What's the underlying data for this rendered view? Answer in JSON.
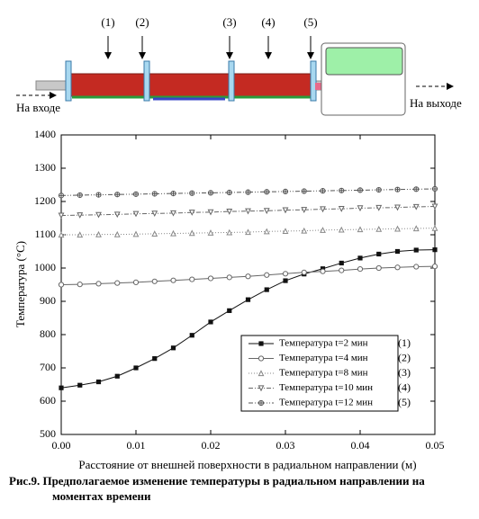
{
  "diagram": {
    "stage_labels": [
      "(1)",
      "(2)",
      "(3)",
      "(4)",
      "(5)"
    ],
    "inlet": "На входе",
    "outlet": "На выходе"
  },
  "chart_data": {
    "type": "line",
    "x_label": "Расстояние от внешней поверхности в радиальном направлении (м)",
    "y_label": "Температура (°C)",
    "x": [
      0,
      0.0025,
      0.005,
      0.0075,
      0.01,
      0.0125,
      0.015,
      0.0175,
      0.02,
      0.0225,
      0.025,
      0.0275,
      0.03,
      0.0325,
      0.035,
      0.0375,
      0.04,
      0.0425,
      0.045,
      0.0475,
      0.05
    ],
    "series": [
      {
        "name": "Температура t=2 мин",
        "color": "#111111",
        "marker": "square-filled",
        "dash": "",
        "values": [
          640,
          648,
          658,
          675,
          700,
          728,
          760,
          798,
          838,
          872,
          905,
          935,
          962,
          982,
          998,
          1015,
          1030,
          1042,
          1050,
          1054,
          1055
        ]
      },
      {
        "name": "Температура t=4 мин",
        "color": "#666666",
        "marker": "circle-open",
        "dash": "",
        "values": [
          950,
          951,
          953,
          955,
          957,
          960,
          963,
          966,
          969,
          972,
          975,
          979,
          983,
          987,
          990,
          993,
          997,
          1000,
          1002,
          1004,
          1005
        ]
      },
      {
        "name": "Температура t=8 мин",
        "color": "#888888",
        "marker": "triangle-up",
        "dash": "1 2",
        "values": [
          1100,
          1100,
          1101,
          1101,
          1102,
          1103,
          1104,
          1105,
          1106,
          1107,
          1108,
          1110,
          1111,
          1112,
          1114,
          1115,
          1116,
          1117,
          1118,
          1119,
          1120
        ]
      },
      {
        "name": "Температура t=10 мин",
        "color": "#666666",
        "marker": "triangle-down",
        "dash": "5 2 1 2",
        "values": [
          1158,
          1159,
          1160,
          1161,
          1163,
          1164,
          1165,
          1167,
          1168,
          1170,
          1171,
          1172,
          1174,
          1175,
          1177,
          1178,
          1180,
          1181,
          1182,
          1184,
          1185
        ]
      },
      {
        "name": "Температура t=12 мин",
        "color": "#555555",
        "marker": "circle-cross",
        "dash": "5 2 1 2 1 2",
        "values": [
          1218,
          1219,
          1220,
          1221,
          1222,
          1223,
          1224,
          1225,
          1226,
          1227,
          1228,
          1229,
          1230,
          1231,
          1232,
          1233,
          1234,
          1235,
          1236,
          1237,
          1238
        ]
      }
    ],
    "legend_numbers": [
      "(1)",
      "(2)",
      "(3)",
      "(4)",
      "(5)"
    ],
    "legend_position": "lower right",
    "xlim": [
      0,
      0.05
    ],
    "xticks": [
      {
        "value": 0,
        "label": "0.00"
      },
      {
        "value": 0.01,
        "label": "0.01"
      },
      {
        "value": 0.02,
        "label": "0.02"
      },
      {
        "value": 0.03,
        "label": "0.03"
      },
      {
        "value": 0.04,
        "label": "0.04"
      },
      {
        "value": 0.05,
        "label": "0.05"
      }
    ],
    "ylim": [
      500,
      1400
    ],
    "yticks": [
      500,
      600,
      700,
      800,
      900,
      1000,
      1100,
      1200,
      1300,
      1400
    ]
  },
  "caption": "Рис.9. Предполагаемое изменение температуры в радиальном направлении на моментах времени"
}
